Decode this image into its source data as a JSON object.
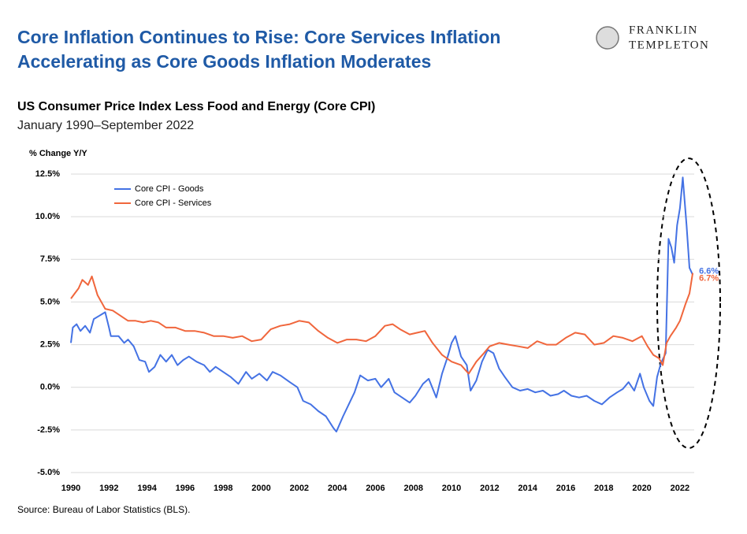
{
  "logo": [
    "FRANKLIN",
    "TEMPLETON"
  ],
  "chart_data": {
    "type": "line",
    "title": [
      "Core Inflation Continues to Rise: Core Services Inflation",
      "Accelerating as Core Goods Inflation Moderates"
    ],
    "subtitle": "US Consumer Price Index Less Food and Energy (Core CPI)",
    "date_range": "January 1990–September 2022",
    "y_label": "% Change Y/Y",
    "source": "Source: Bureau of Labor Statistics (BLS).",
    "xlim": [
      1990,
      2022.75
    ],
    "xticks": [
      1990,
      1992,
      1994,
      1996,
      1998,
      2000,
      2002,
      2004,
      2006,
      2008,
      2010,
      2012,
      2014,
      2016,
      2018,
      2020,
      2022
    ],
    "ylim": [
      -5,
      12.5
    ],
    "yticks": [
      {
        "value": -5,
        "label": "-5.0%"
      },
      {
        "value": -2.5,
        "label": "-2.5%"
      },
      {
        "value": 0,
        "label": "0.0%"
      },
      {
        "value": 2.5,
        "label": "2.5%"
      },
      {
        "value": 5,
        "label": "5.0%"
      },
      {
        "value": 7.5,
        "label": "7.5%"
      },
      {
        "value": 10,
        "label": "10.0%"
      },
      {
        "value": 12.5,
        "label": "12.5%"
      }
    ],
    "grid": true,
    "legend": "upper-left",
    "series": [
      {
        "name": "Core CPI - Goods",
        "color": "#4472e4",
        "last_label": "6.6%",
        "x": [
          1990.0,
          1990.1,
          1990.3,
          1990.5,
          1990.75,
          1991.0,
          1991.2,
          1991.5,
          1991.8,
          1992.0,
          1992.1,
          1992.5,
          1992.8,
          1993.0,
          1993.3,
          1993.6,
          1993.9,
          1994.1,
          1994.4,
          1994.7,
          1995.0,
          1995.3,
          1995.6,
          1995.9,
          1996.2,
          1996.6,
          1997.0,
          1997.3,
          1997.6,
          1998.0,
          1998.4,
          1998.8,
          1999.2,
          1999.5,
          1999.9,
          2000.3,
          2000.6,
          2001.0,
          2001.5,
          2001.9,
          2002.2,
          2002.6,
          2003.0,
          2003.4,
          2003.8,
          2003.95,
          2004.3,
          2004.6,
          2004.9,
          2005.2,
          2005.6,
          2006.0,
          2006.3,
          2006.7,
          2007.0,
          2007.4,
          2007.8,
          2008.1,
          2008.5,
          2008.8,
          2009.2,
          2009.5,
          2009.8,
          2010.0,
          2010.2,
          2010.5,
          2010.8,
          2011.0,
          2011.3,
          2011.6,
          2011.9,
          2012.2,
          2012.5,
          2012.8,
          2013.2,
          2013.6,
          2014.0,
          2014.4,
          2014.8,
          2015.2,
          2015.6,
          2015.9,
          2016.3,
          2016.7,
          2017.1,
          2017.5,
          2017.9,
          2018.3,
          2018.7,
          2019.0,
          2019.3,
          2019.6,
          2019.9,
          2020.1,
          2020.4,
          2020.6,
          2020.8,
          2021.0,
          2021.25,
          2021.4,
          2021.55,
          2021.7,
          2021.85,
          2022.0,
          2022.15,
          2022.35,
          2022.5,
          2022.67
        ],
        "values": [
          2.6,
          3.5,
          3.7,
          3.3,
          3.6,
          3.2,
          4.0,
          4.2,
          4.4,
          3.5,
          3.0,
          3.0,
          2.6,
          2.8,
          2.4,
          1.6,
          1.5,
          0.9,
          1.2,
          1.9,
          1.5,
          1.9,
          1.3,
          1.6,
          1.8,
          1.5,
          1.3,
          0.9,
          1.2,
          0.9,
          0.6,
          0.2,
          0.9,
          0.5,
          0.8,
          0.4,
          0.9,
          0.7,
          0.3,
          0.0,
          -0.8,
          -1.0,
          -1.4,
          -1.7,
          -2.4,
          -2.6,
          -1.7,
          -1.0,
          -0.3,
          0.7,
          0.4,
          0.5,
          0.0,
          0.5,
          -0.3,
          -0.6,
          -0.9,
          -0.5,
          0.2,
          0.5,
          -0.6,
          0.8,
          1.8,
          2.6,
          3.0,
          1.8,
          1.3,
          -0.2,
          0.4,
          1.5,
          2.2,
          2.0,
          1.1,
          0.6,
          0.0,
          -0.2,
          -0.1,
          -0.3,
          -0.2,
          -0.5,
          -0.4,
          -0.2,
          -0.5,
          -0.6,
          -0.5,
          -0.8,
          -1.0,
          -0.6,
          -0.3,
          -0.1,
          0.3,
          -0.2,
          0.8,
          0.0,
          -0.8,
          -1.1,
          0.6,
          1.4,
          2.0,
          8.7,
          8.2,
          7.3,
          9.5,
          10.5,
          12.3,
          9.5,
          7.0,
          6.6
        ]
      },
      {
        "name": "Core CPI - Services",
        "color": "#f0663c",
        "last_label": "6.7%",
        "x": [
          1990.0,
          1990.2,
          1990.4,
          1990.6,
          1990.9,
          1991.1,
          1991.4,
          1991.8,
          1992.2,
          1992.6,
          1993.0,
          1993.4,
          1993.8,
          1994.2,
          1994.6,
          1995.0,
          1995.5,
          1996.0,
          1996.5,
          1997.0,
          1997.5,
          1998.0,
          1998.5,
          1999.0,
          1999.5,
          2000.0,
          2000.5,
          2001.0,
          2001.5,
          2002.0,
          2002.5,
          2003.0,
          2003.5,
          2004.0,
          2004.5,
          2005.0,
          2005.5,
          2006.0,
          2006.5,
          2006.9,
          2007.3,
          2007.8,
          2008.2,
          2008.6,
          2009.0,
          2009.5,
          2010.0,
          2010.5,
          2010.9,
          2011.3,
          2011.7,
          2012.0,
          2012.5,
          2013.0,
          2013.5,
          2014.0,
          2014.5,
          2015.0,
          2015.5,
          2016.0,
          2016.5,
          2017.0,
          2017.5,
          2018.0,
          2018.5,
          2019.0,
          2019.5,
          2020.0,
          2020.3,
          2020.6,
          2020.9,
          2021.1,
          2021.3,
          2021.5,
          2021.8,
          2022.0,
          2022.3,
          2022.5,
          2022.67
        ],
        "values": [
          5.2,
          5.5,
          5.8,
          6.3,
          6.0,
          6.5,
          5.4,
          4.6,
          4.5,
          4.2,
          3.9,
          3.9,
          3.8,
          3.9,
          3.8,
          3.5,
          3.5,
          3.3,
          3.3,
          3.2,
          3.0,
          3.0,
          2.9,
          3.0,
          2.7,
          2.8,
          3.4,
          3.6,
          3.7,
          3.9,
          3.8,
          3.3,
          2.9,
          2.6,
          2.8,
          2.8,
          2.7,
          3.0,
          3.6,
          3.7,
          3.4,
          3.1,
          3.2,
          3.3,
          2.6,
          1.9,
          1.5,
          1.3,
          0.8,
          1.5,
          2.0,
          2.4,
          2.6,
          2.5,
          2.4,
          2.3,
          2.7,
          2.5,
          2.5,
          2.9,
          3.2,
          3.1,
          2.5,
          2.6,
          3.0,
          2.9,
          2.7,
          3.0,
          2.4,
          1.9,
          1.7,
          1.3,
          2.6,
          3.0,
          3.5,
          3.9,
          4.9,
          5.5,
          6.7
        ]
      }
    ]
  }
}
